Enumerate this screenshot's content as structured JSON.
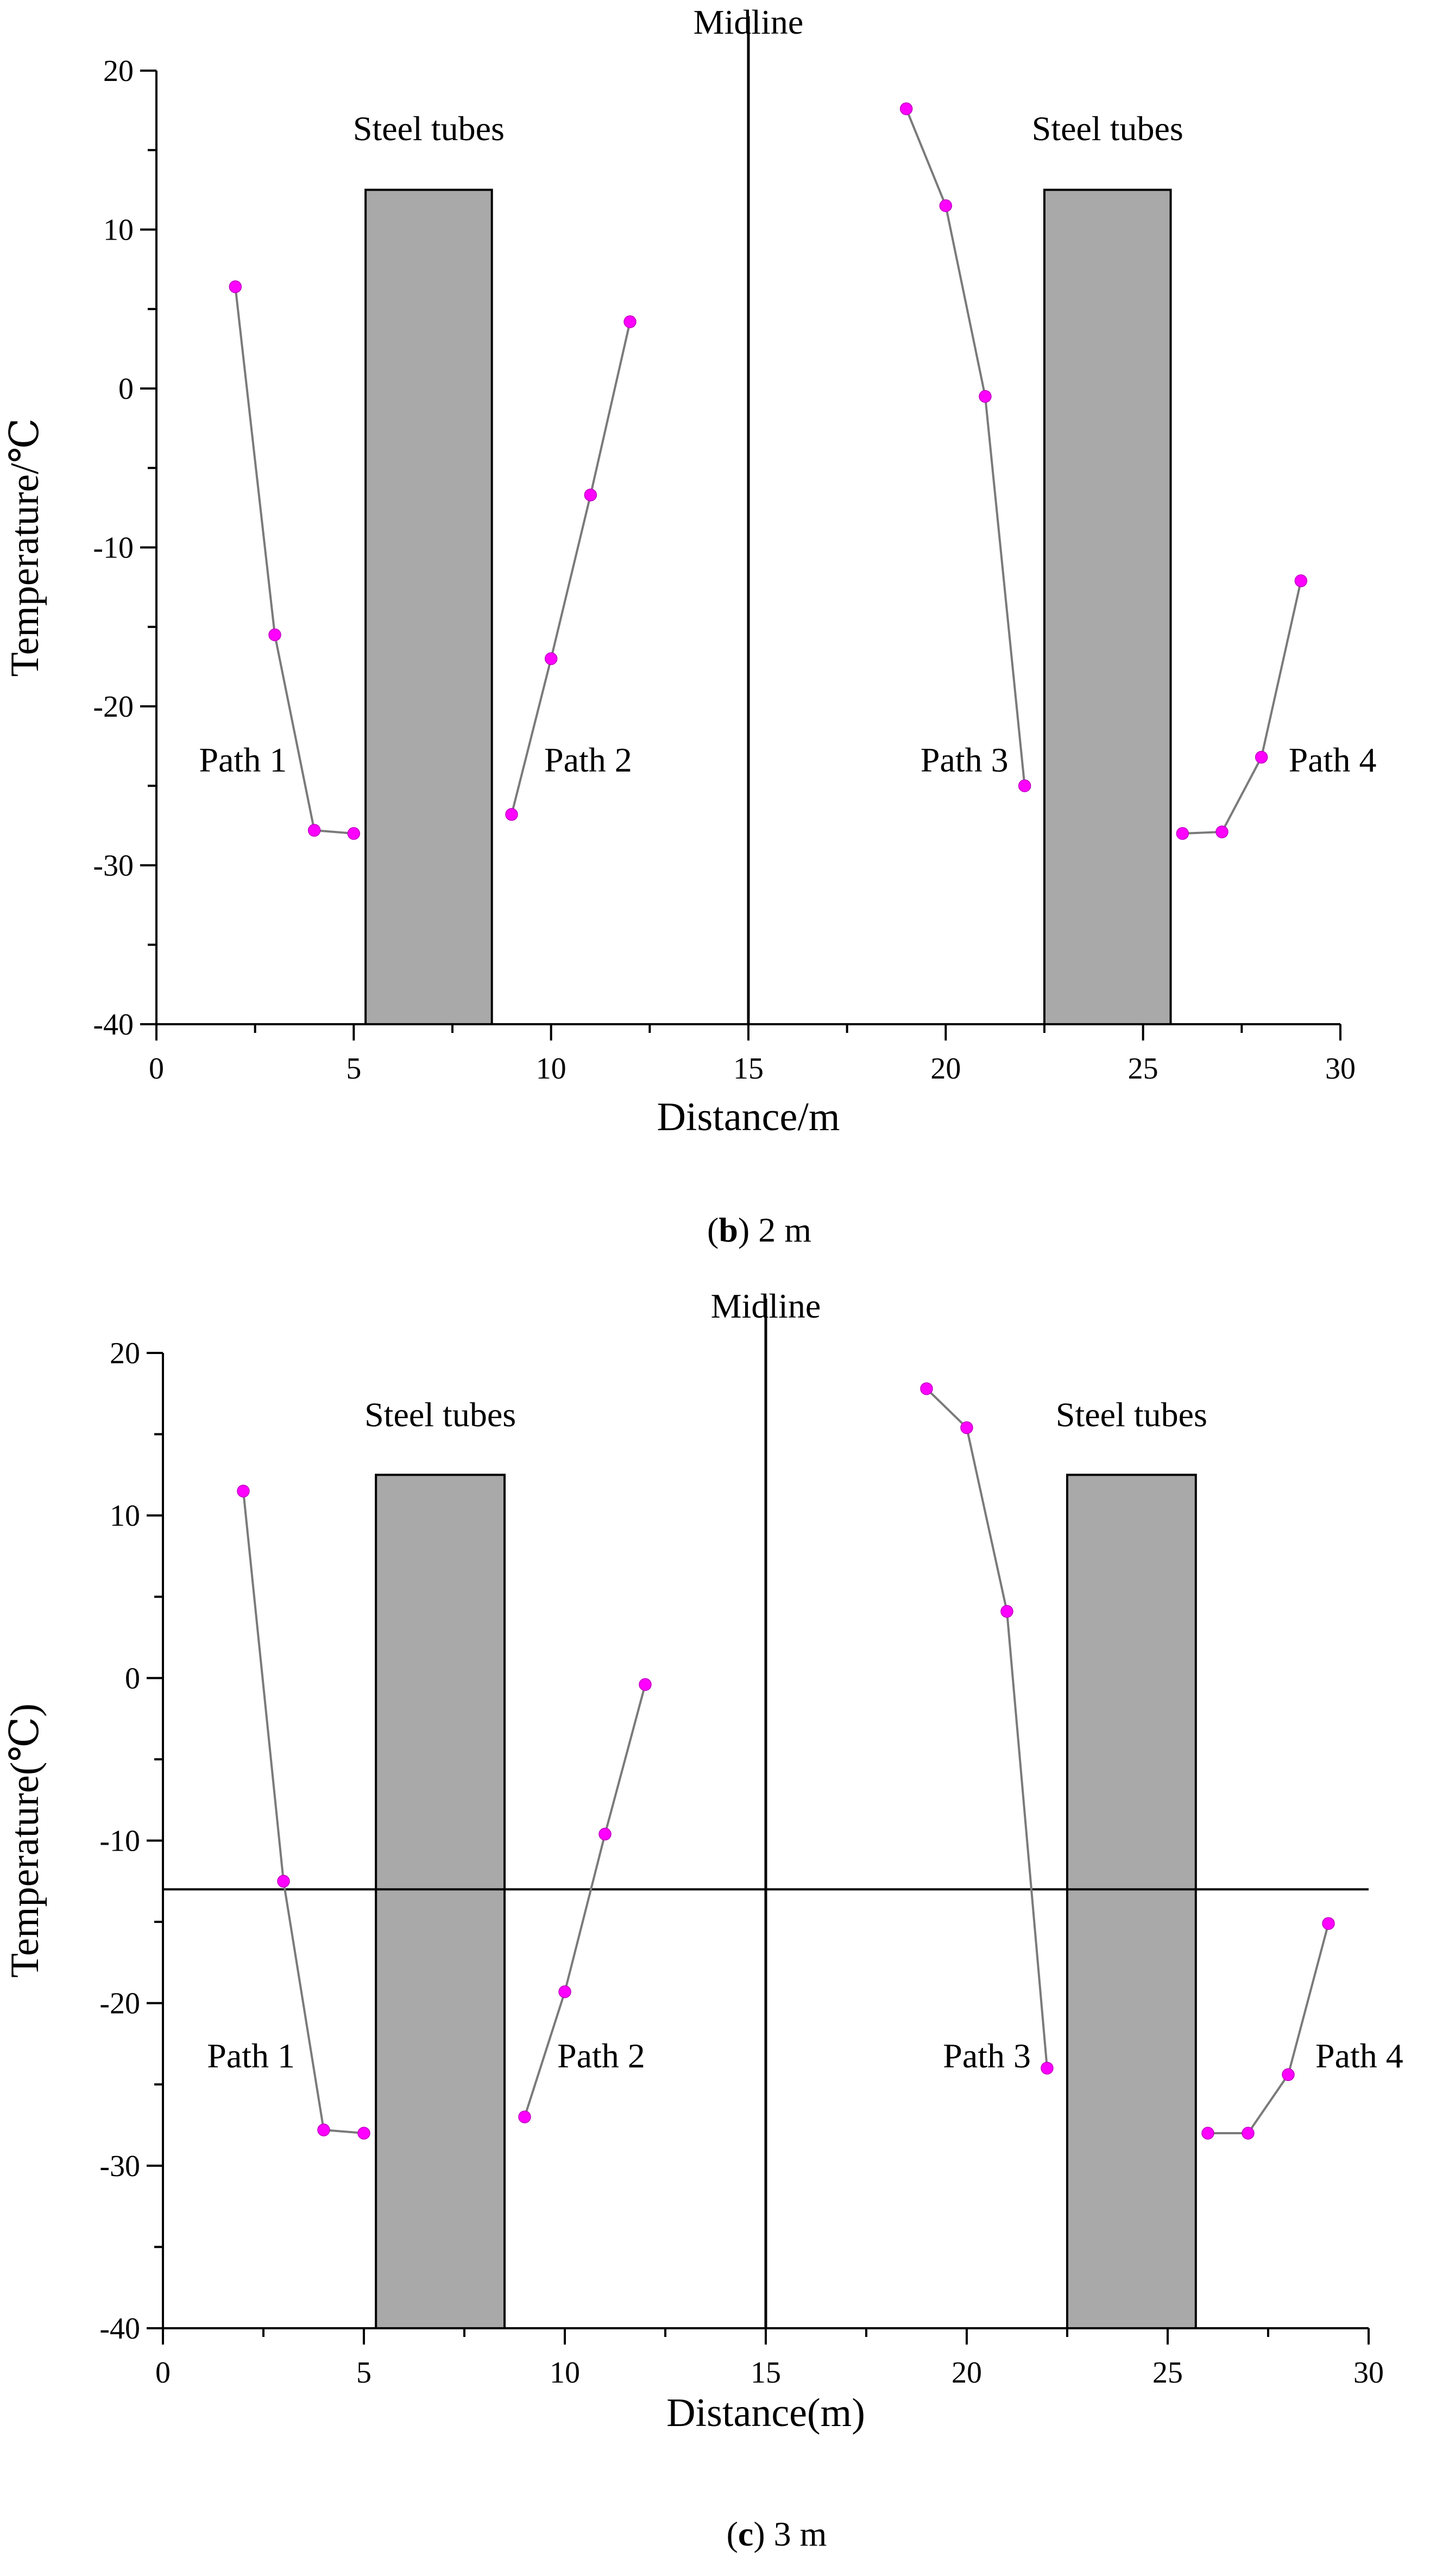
{
  "chart_data": [
    {
      "type": "line",
      "panel": "b",
      "caption": {
        "open": "(",
        "letter": "b",
        "close": ")",
        "text": " 2 m"
      },
      "xlabel": "Distance/m",
      "ylabel": "Temperature/℃",
      "xlim": [
        0,
        30
      ],
      "ylim": [
        -40,
        20
      ],
      "xticks": [
        0,
        5,
        10,
        15,
        20,
        25,
        30
      ],
      "yticks": [
        -40,
        -30,
        -20,
        -10,
        0,
        10,
        20
      ],
      "grid": false,
      "midline": {
        "x": 15,
        "label": "Midline"
      },
      "reference_line": null,
      "steel_tubes": [
        {
          "x0": 5.3,
          "x1": 8.5,
          "y0": -40,
          "y1": 12.5,
          "label": "Steel tubes"
        },
        {
          "x0": 22.5,
          "x1": 25.7,
          "y0": -40,
          "y1": 12.5,
          "label": "Steel tubes"
        }
      ],
      "series": [
        {
          "name": "Path 1",
          "x": [
            2,
            3,
            4,
            5
          ],
          "y": [
            6.4,
            -15.5,
            -27.8,
            -28.0
          ]
        },
        {
          "name": "Path 2",
          "x": [
            9,
            10,
            11,
            12
          ],
          "y": [
            -26.8,
            -17.0,
            -6.7,
            4.2
          ]
        },
        {
          "name": "Path 3",
          "x": [
            19,
            20,
            21,
            22
          ],
          "y": [
            17.6,
            11.5,
            -0.5,
            -25.0
          ]
        },
        {
          "name": "Path 4",
          "x": [
            26,
            27,
            28,
            29
          ],
          "y": [
            -28.0,
            -27.9,
            -23.2,
            -12.1
          ]
        }
      ],
      "path_labels": [
        {
          "text": "Path 1",
          "x": 2.0,
          "y": -24.2
        },
        {
          "text": "Path 2",
          "x": 11.1,
          "y": -24.2
        },
        {
          "text": "Path 3",
          "x": 20.4,
          "y": -24.2
        },
        {
          "text": "Path 4",
          "x": 30.0,
          "y": -24.2
        }
      ],
      "colors": {
        "marker": "#ff00ff",
        "line": "#7a7a7a",
        "tube_fill": "#a9a9a9",
        "tube_stroke": "#000000"
      }
    },
    {
      "type": "line",
      "panel": "c",
      "caption": {
        "open": "(",
        "letter": "c",
        "close": ")",
        "text": " 3 m"
      },
      "xlabel": "Distance(m)",
      "ylabel": "Temperature(℃)",
      "xlim": [
        0,
        30
      ],
      "ylim": [
        -40,
        20
      ],
      "xticks": [
        0,
        5,
        10,
        15,
        20,
        25,
        30
      ],
      "yticks": [
        -40,
        -30,
        -20,
        -10,
        0,
        10,
        20
      ],
      "grid": false,
      "midline": {
        "x": 15,
        "label": "Midline"
      },
      "reference_line": {
        "y": -13
      },
      "steel_tubes": [
        {
          "x0": 5.3,
          "x1": 8.5,
          "y0": -40,
          "y1": 12.5,
          "label": "Steel tubes"
        },
        {
          "x0": 22.5,
          "x1": 25.7,
          "y0": -40,
          "y1": 12.5,
          "label": "Steel tubes"
        }
      ],
      "series": [
        {
          "name": "Path 1",
          "x": [
            2,
            3,
            4,
            5
          ],
          "y": [
            11.5,
            -12.5,
            -27.8,
            -28.0
          ]
        },
        {
          "name": "Path 2",
          "x": [
            9,
            10,
            11,
            12
          ],
          "y": [
            -27.0,
            -19.3,
            -9.6,
            -0.4
          ]
        },
        {
          "name": "Path 3",
          "x": [
            19,
            20,
            21,
            22
          ],
          "y": [
            17.8,
            15.4,
            4.1,
            -24.0
          ]
        },
        {
          "name": "Path 4",
          "x": [
            26,
            27,
            28,
            29
          ],
          "y": [
            -28.0,
            -28.0,
            -24.4,
            -15.1
          ]
        }
      ],
      "path_labels": [
        {
          "text": "Path 1",
          "x": 2.0,
          "y": -24.2
        },
        {
          "text": "Path 2",
          "x": 11.1,
          "y": -24.2
        },
        {
          "text": "Path 3",
          "x": 20.4,
          "y": -24.2
        },
        {
          "text": "Path 4",
          "x": 30.0,
          "y": -24.2
        }
      ],
      "colors": {
        "marker": "#ff00ff",
        "line": "#7a7a7a",
        "tube_fill": "#a9a9a9",
        "tube_stroke": "#000000"
      }
    }
  ]
}
